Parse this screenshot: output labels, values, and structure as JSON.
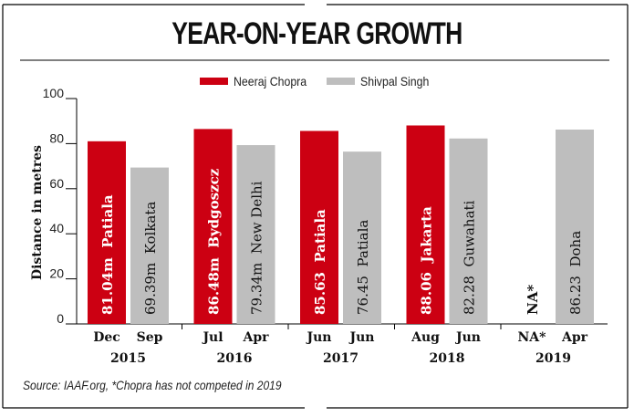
{
  "header": {
    "title": "YEAR-ON-YEAR GROWTH"
  },
  "legend": [
    {
      "name": "Neeraj Chopra",
      "color": "#CC0012"
    },
    {
      "name": "Shivpal Singh",
      "color": "#BEBEBE"
    }
  ],
  "footer": {
    "source": "Source: IAAF.org, *Chopra has not competed in 2019"
  },
  "chart_data": {
    "type": "bar",
    "title": "YEAR-ON-YEAR GROWTH",
    "xlabel": "",
    "ylabel": "Distance in metres",
    "ylim": [
      0,
      100
    ],
    "yticks": [
      "0",
      "20",
      "40",
      "60",
      "80",
      "100"
    ],
    "legend_position": "top-center",
    "grid": false,
    "categories": [
      "2015",
      "2016",
      "2017",
      "2018",
      "2019"
    ],
    "series": [
      {
        "name": "Neeraj Chopra",
        "color": "#CC0012",
        "values": [
          81.04,
          86.48,
          85.63,
          88.06,
          null
        ],
        "months": [
          "Dec",
          "Jul",
          "Jun",
          "Aug",
          "NA*"
        ],
        "value_labels": [
          "81.04m",
          "86.48m",
          "85.63",
          "88.06",
          "NA*"
        ],
        "venues": [
          "Patiala",
          "Bydgoszcz",
          "Patiala",
          "Jakarta",
          ""
        ]
      },
      {
        "name": "Shivpal Singh",
        "color": "#BEBEBE",
        "values": [
          69.39,
          79.34,
          76.45,
          82.28,
          86.23
        ],
        "months": [
          "Sep",
          "Apr",
          "Jun",
          "Jun",
          "Apr"
        ],
        "value_labels": [
          "69.39m",
          "79.34m",
          "76.45",
          "82.28",
          "86.23"
        ],
        "venues": [
          "Kolkata",
          "New Delhi",
          "Patiala",
          "Guwahati",
          "Doha"
        ]
      }
    ]
  }
}
